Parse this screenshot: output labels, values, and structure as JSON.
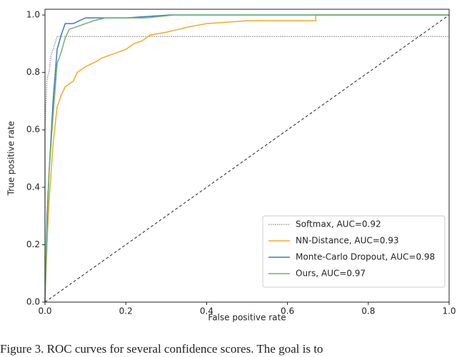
{
  "chart_data": {
    "type": "line",
    "xlabel": "False positive rate",
    "ylabel": "True positive rate",
    "caption": "Figure 3. ROC curves for several confidence scores. The goal is to",
    "xlim": [
      0,
      1
    ],
    "ylim": [
      0,
      1.02
    ],
    "xticks": [
      {
        "value": 0,
        "label": "0.0"
      },
      0.2,
      0.4,
      0.6,
      0.8,
      {
        "value": 1,
        "label": "1.0"
      }
    ],
    "yticks": [
      {
        "value": 0,
        "label": "0.0"
      },
      0.2,
      0.4,
      0.6,
      0.8,
      {
        "value": 1,
        "label": "1.0"
      }
    ],
    "legend_position": "lower right",
    "chance_line": true,
    "series": [
      {
        "name": "Softmax, AUC=0.92",
        "color": "#9a9a9a",
        "dash": "dotted",
        "x": [
          0,
          0,
          0.005,
          0.01,
          0.015,
          0.02,
          0.03,
          1.0
        ],
        "values": [
          0,
          0.6,
          0.78,
          0.8,
          0.86,
          0.88,
          0.925,
          0.925
        ]
      },
      {
        "name": "NN-Distance, AUC=0.93",
        "color": "#f7a823",
        "dash": "solid",
        "x": [
          0,
          0.005,
          0.01,
          0.02,
          0.03,
          0.04,
          0.05,
          0.07,
          0.08,
          0.1,
          0.13,
          0.14,
          0.16,
          0.18,
          0.2,
          0.22,
          0.24,
          0.26,
          0.3,
          0.33,
          0.36,
          0.4,
          0.5,
          0.6,
          0.67,
          0.67,
          1.0
        ],
        "values": [
          0,
          0.2,
          0.35,
          0.55,
          0.68,
          0.72,
          0.75,
          0.77,
          0.8,
          0.82,
          0.84,
          0.85,
          0.86,
          0.87,
          0.88,
          0.9,
          0.91,
          0.93,
          0.94,
          0.95,
          0.96,
          0.97,
          0.98,
          0.98,
          0.98,
          1.0,
          1.0
        ]
      },
      {
        "name": "Monte-Carlo Dropout, AUC=0.98",
        "color": "#3b78c6",
        "dash": "solid",
        "x": [
          0,
          0.005,
          0.01,
          0.02,
          0.03,
          0.04,
          0.05,
          0.07,
          0.1,
          0.15,
          0.2,
          0.31,
          1.0
        ],
        "values": [
          0,
          0.3,
          0.45,
          0.7,
          0.88,
          0.93,
          0.97,
          0.97,
          0.99,
          0.99,
          0.99,
          1.0,
          1.0
        ]
      },
      {
        "name": "Ours, AUC=0.97",
        "color": "#6db36d",
        "dash": "solid",
        "x": [
          0,
          0.005,
          0.01,
          0.02,
          0.03,
          0.04,
          0.05,
          0.06,
          0.08,
          0.1,
          0.12,
          0.15,
          0.2,
          0.25,
          0.32,
          1.0
        ],
        "values": [
          0,
          0.25,
          0.45,
          0.65,
          0.83,
          0.87,
          0.92,
          0.95,
          0.96,
          0.97,
          0.98,
          0.99,
          0.99,
          0.99,
          1.0,
          1.0
        ]
      }
    ]
  }
}
